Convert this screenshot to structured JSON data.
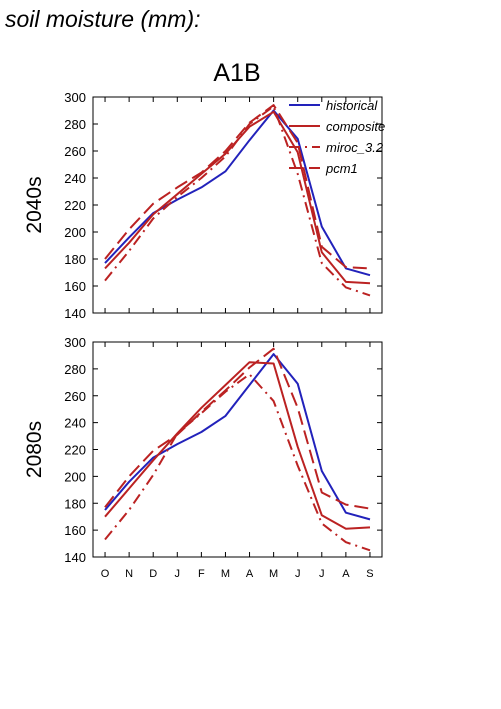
{
  "figure": {
    "title": "soil moisture (mm):",
    "scenario": "A1B"
  },
  "legend": [
    {
      "label": "historical",
      "color": "#2222bb",
      "dash": "solid"
    },
    {
      "label": "composite",
      "color": "#bb2222",
      "dash": "solid"
    },
    {
      "label": "miroc_3.2",
      "color": "#bb2222",
      "dash": "dashdot"
    },
    {
      "label": "pcm1",
      "color": "#bb2222",
      "dash": "longdash"
    }
  ],
  "chart_data": [
    {
      "type": "line",
      "title": "A1B",
      "row_label": "2040s",
      "categories": [
        "O",
        "N",
        "D",
        "J",
        "F",
        "M",
        "A",
        "M",
        "J",
        "J",
        "A",
        "S"
      ],
      "ylim": [
        140,
        300
      ],
      "yticks": [
        140,
        160,
        180,
        200,
        220,
        240,
        260,
        280,
        300
      ],
      "legend_position": "top-right",
      "series": [
        {
          "name": "historical",
          "color": "#2222bb",
          "dash": "solid",
          "values": [
            177,
            196,
            214,
            224,
            233,
            245,
            268,
            290,
            269,
            204,
            173,
            168
          ]
        },
        {
          "name": "composite",
          "color": "#bb2222",
          "dash": "solid",
          "values": [
            173,
            192,
            213,
            228,
            243,
            258,
            278,
            289,
            259,
            185,
            163,
            162
          ]
        },
        {
          "name": "miroc_3.2",
          "color": "#bb2222",
          "dash": "dashdot",
          "values": [
            164,
            186,
            210,
            226,
            240,
            256,
            280,
            293,
            243,
            177,
            159,
            153
          ]
        },
        {
          "name": "pcm1",
          "color": "#bb2222",
          "dash": "longdash",
          "values": [
            180,
            202,
            221,
            233,
            244,
            260,
            281,
            294,
            266,
            189,
            174,
            173
          ]
        }
      ]
    },
    {
      "type": "line",
      "row_label": "2080s",
      "categories": [
        "O",
        "N",
        "D",
        "J",
        "F",
        "M",
        "A",
        "M",
        "J",
        "J",
        "A",
        "S"
      ],
      "ylim": [
        140,
        300
      ],
      "yticks": [
        140,
        160,
        180,
        200,
        220,
        240,
        260,
        280,
        300
      ],
      "series": [
        {
          "name": "historical",
          "color": "#2222bb",
          "dash": "solid",
          "values": [
            175,
            196,
            214,
            224,
            233,
            245,
            268,
            291,
            269,
            204,
            173,
            168
          ]
        },
        {
          "name": "composite",
          "color": "#bb2222",
          "dash": "solid",
          "values": [
            170,
            191,
            212,
            232,
            251,
            268,
            285,
            284,
            222,
            171,
            161,
            162
          ]
        },
        {
          "name": "miroc_3.2",
          "color": "#bb2222",
          "dash": "dashdot",
          "values": [
            153,
            175,
            201,
            232,
            247,
            263,
            276,
            256,
            208,
            165,
            151,
            145
          ]
        },
        {
          "name": "pcm1",
          "color": "#bb2222",
          "dash": "longdash",
          "values": [
            177,
            200,
            219,
            231,
            248,
            264,
            281,
            295,
            251,
            188,
            179,
            176
          ]
        }
      ]
    }
  ]
}
